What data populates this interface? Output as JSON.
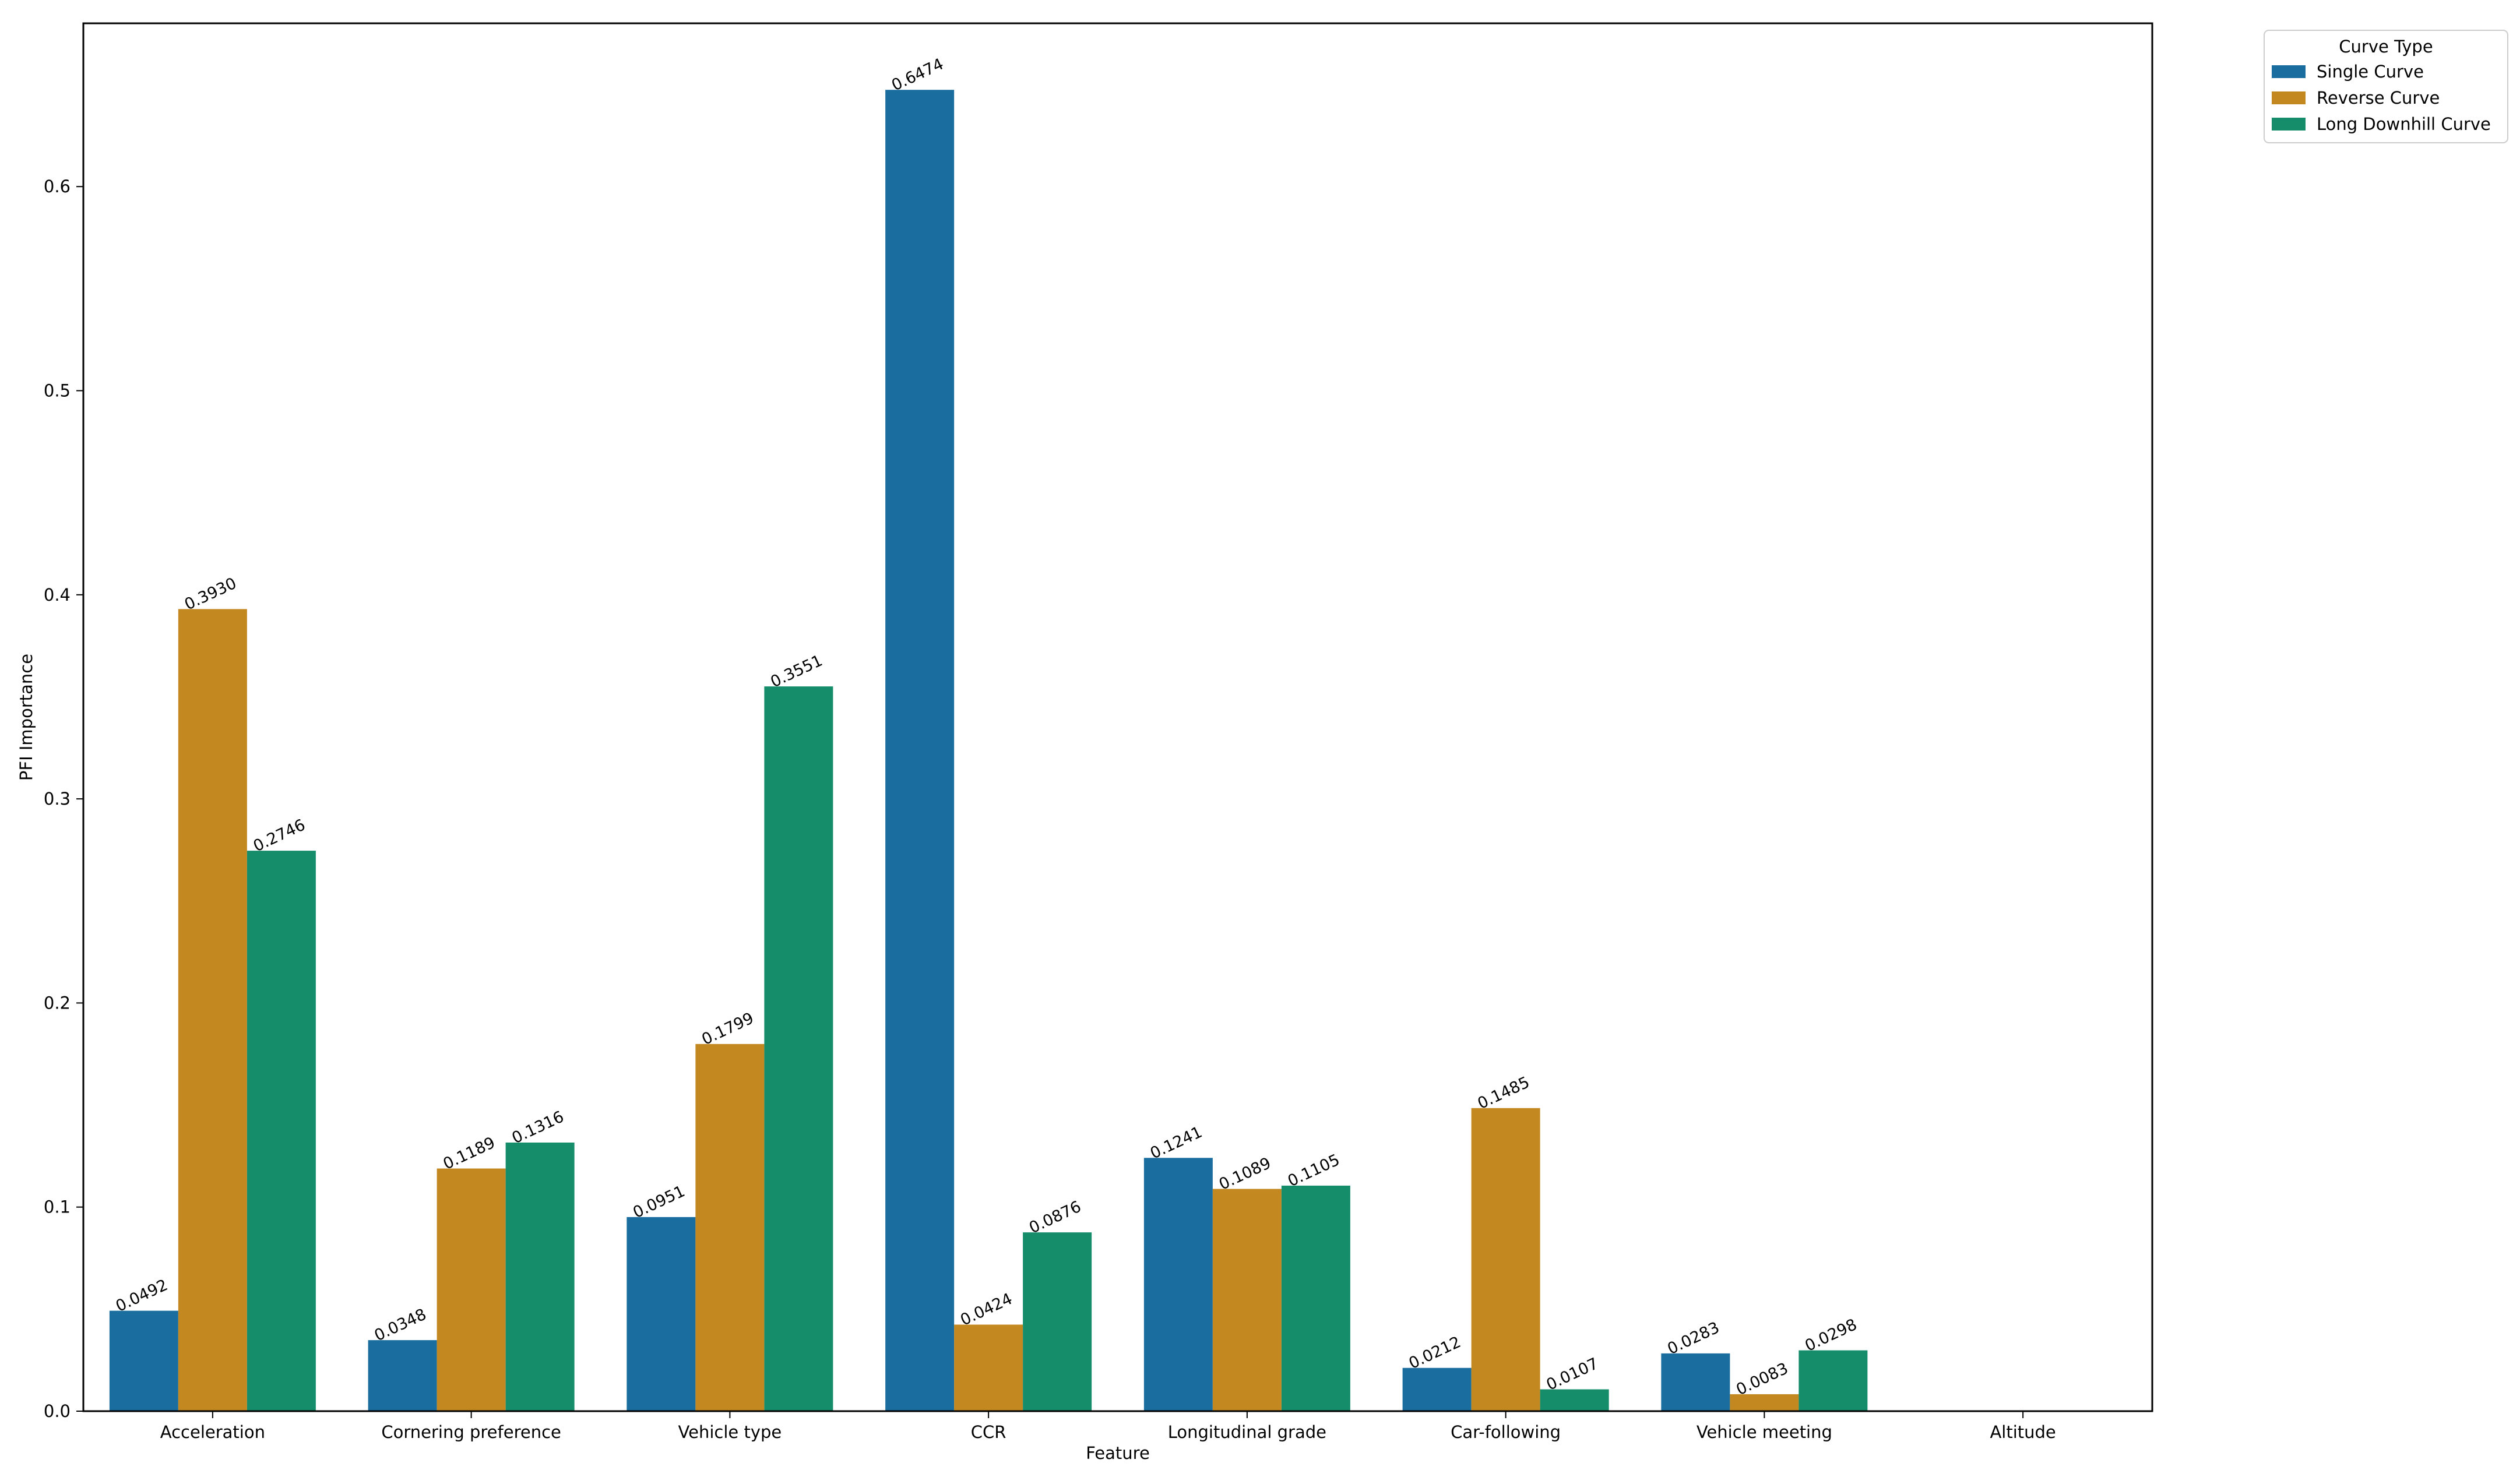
{
  "chart_data": {
    "type": "bar",
    "title": "",
    "xlabel": "Feature",
    "ylabel": "PFI Importance",
    "ylim": [
      0,
      0.68
    ],
    "yticks": [
      "0.0",
      "0.1",
      "0.2",
      "0.3",
      "0.4",
      "0.5",
      "0.6"
    ],
    "categories": [
      "Acceleration",
      "Cornering preference",
      "Vehicle type",
      "CCR",
      "Longitudinal grade",
      "Car-following",
      "Vehicle meeting",
      "Altitude"
    ],
    "series": [
      {
        "name": "Single Curve",
        "color": "#1a6e9f",
        "values": [
          0.0492,
          0.0348,
          0.0951,
          0.6474,
          0.1241,
          0.0212,
          0.0283,
          null
        ],
        "labels": [
          "0.0492",
          "0.0348",
          "0.0951",
          "0.6474",
          "0.1241",
          "0.0212",
          "0.0283",
          ""
        ]
      },
      {
        "name": "Reverse Curve",
        "color": "#c48820",
        "values": [
          0.393,
          0.1189,
          0.1799,
          0.0424,
          0.1089,
          0.1485,
          0.0083,
          null
        ],
        "labels": [
          "0.3930",
          "0.1189",
          "0.1799",
          "0.0424",
          "0.1089",
          "0.1485",
          "0.0083",
          ""
        ]
      },
      {
        "name": "Long Downhill Curve",
        "color": "#158c6a",
        "values": [
          0.2746,
          0.1316,
          0.3551,
          0.0876,
          0.1105,
          0.0107,
          0.0298,
          null
        ],
        "labels": [
          "0.2746",
          "0.1316",
          "0.3551",
          "0.0876",
          "0.1105",
          "0.0107",
          "0.0298",
          ""
        ]
      }
    ],
    "legend": {
      "title": "Curve Type",
      "placement": "outside-top-right"
    },
    "grid": false
  }
}
